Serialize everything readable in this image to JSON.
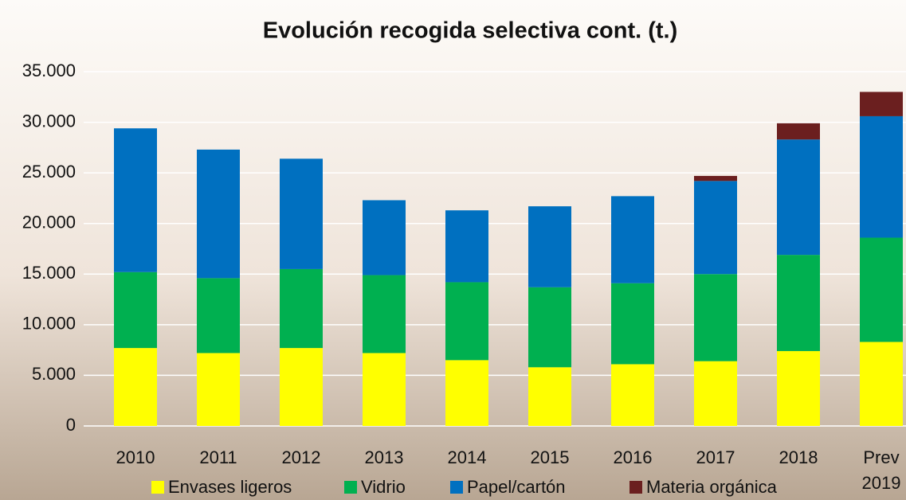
{
  "chart_data": {
    "type": "stacked_bar",
    "title": "Evolución recogida selectiva cont. (t.)",
    "categories": [
      "2010",
      "2011",
      "2012",
      "2013",
      "2014",
      "2015",
      "2016",
      "2017",
      "2018",
      "Prev 2019"
    ],
    "series": [
      {
        "name": "Envases ligeros",
        "color": "#ffff00",
        "values": [
          7700,
          7200,
          7700,
          7200,
          6500,
          5800,
          6100,
          6400,
          7400,
          8300
        ]
      },
      {
        "name": "Vidrio",
        "color": "#00b050",
        "values": [
          7500,
          7400,
          7800,
          7700,
          7700,
          7900,
          8000,
          8600,
          9500,
          10300
        ]
      },
      {
        "name": "Papel/cartón",
        "color": "#0070c0",
        "values": [
          14200,
          12700,
          10900,
          7400,
          7100,
          8000,
          8600,
          9200,
          11400,
          12000
        ]
      },
      {
        "name": "Materia orgánica",
        "color": "#6b1f1f",
        "values": [
          0,
          0,
          0,
          0,
          0,
          0,
          0,
          500,
          1600,
          2400
        ]
      }
    ],
    "ylim": [
      0,
      35000
    ],
    "yticks": [
      0,
      {
        "value": 5000,
        "label": "5.000"
      },
      {
        "value": 10000,
        "label": "10.000"
      },
      {
        "value": 15000,
        "label": "15.000"
      },
      {
        "value": 20000,
        "label": "20.000"
      },
      {
        "value": 25000,
        "label": "25.000"
      },
      {
        "value": 30000,
        "label": "30.000"
      },
      {
        "value": 35000,
        "label": "35.000"
      }
    ],
    "grid": true,
    "legend": "bottom"
  }
}
